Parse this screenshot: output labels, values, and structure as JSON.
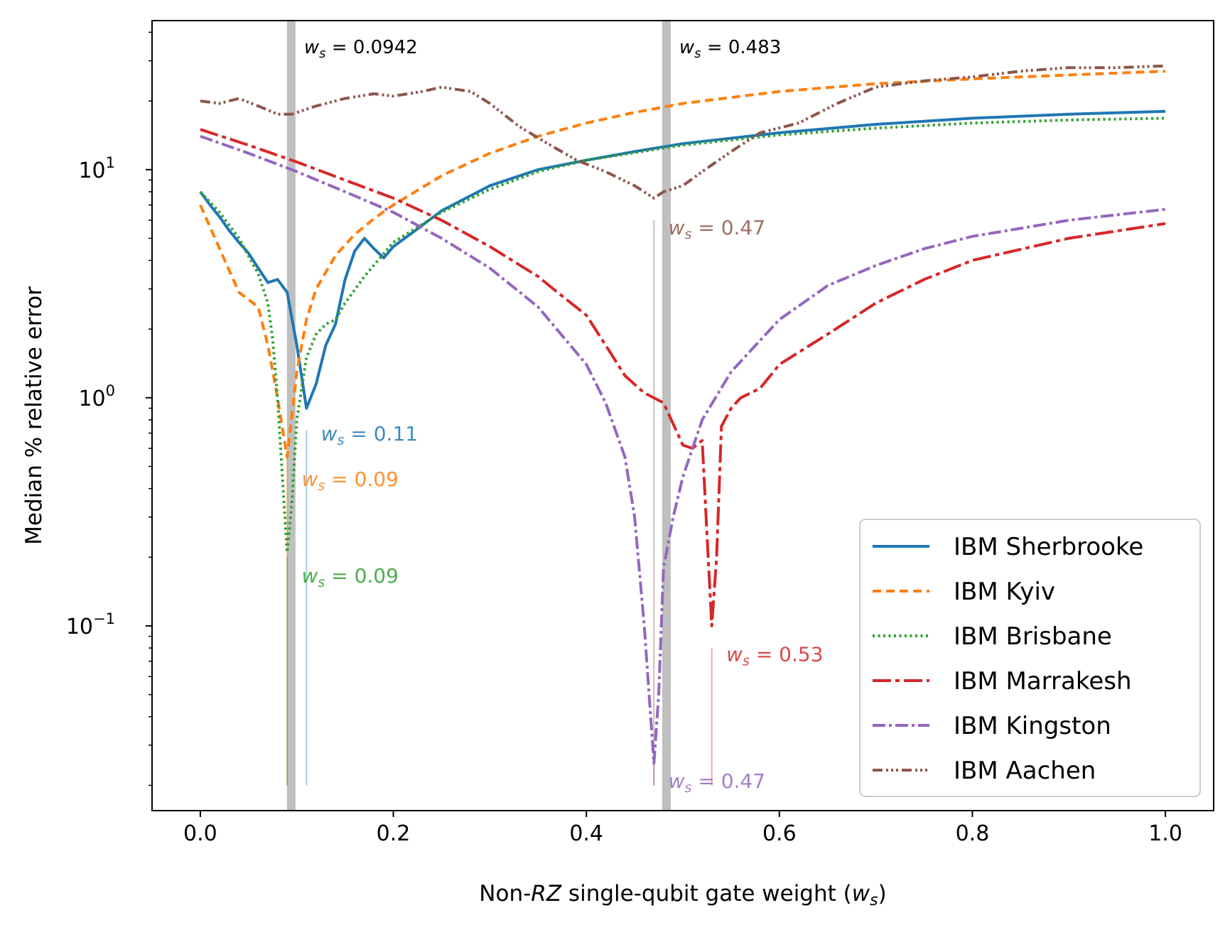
{
  "chart_data": {
    "type": "line",
    "xlabel_prefix": "Non-",
    "xlabel_italic": "RZ",
    "xlabel_middle": " single-qubit gate weight (",
    "xlabel_var": "w",
    "xlabel_sub": "s",
    "xlabel_suffix": ")",
    "ylabel": "Median % relative error",
    "xlim": [
      -0.05,
      1.05
    ],
    "ylim": [
      0.0155,
      45
    ],
    "yscale": "log",
    "xticks": [
      {
        "value": 0.0,
        "label": "0.0"
      },
      {
        "value": 0.2,
        "label": "0.2"
      },
      {
        "value": 0.4,
        "label": "0.4"
      },
      {
        "value": 0.6,
        "label": "0.6"
      },
      {
        "value": 0.8,
        "label": "0.8"
      },
      {
        "value": 1.0,
        "label": "1.0"
      }
    ],
    "yticks": [
      {
        "value": 0.1,
        "base": "10",
        "exp": "−1"
      },
      {
        "value": 1,
        "base": "10",
        "exp": "0"
      },
      {
        "value": 10,
        "base": "10",
        "exp": "1"
      }
    ],
    "legend_position": "lower-right",
    "vertical_lines": [
      {
        "x": 0.0942,
        "label_prefix": "w",
        "label_sub": "s",
        "label_value": " = 0.0942",
        "color": "#bfbfbf"
      },
      {
        "x": 0.483,
        "label_prefix": "w",
        "label_sub": "s",
        "label_value": " = 0.483",
        "color": "#bfbfbf"
      }
    ],
    "annotations": [
      {
        "series": "IBM Sherbrooke",
        "x": 0.11,
        "y_top": 0.72,
        "y_bottom": 0.02,
        "text_x": 0.125,
        "text_y": 0.65,
        "label_prefix": "w",
        "label_sub": "s",
        "label_value": " = 0.11",
        "color": "#1f77b4"
      },
      {
        "series": "IBM Kyiv",
        "x": 0.09,
        "y_top": 0.55,
        "y_bottom": 0.02,
        "text_x": 0.105,
        "text_y": 0.41,
        "label_prefix": "w",
        "label_sub": "s",
        "label_value": " = 0.09",
        "color": "#ff7f0e"
      },
      {
        "series": "IBM Brisbane",
        "x": 0.09,
        "y_top": 0.2,
        "y_bottom": 0.02,
        "text_x": 0.105,
        "text_y": 0.155,
        "label_prefix": "w",
        "label_sub": "s",
        "label_value": " = 0.09",
        "color": "#2ca02c"
      },
      {
        "series": "IBM Marrakesh",
        "x": 0.53,
        "y_top": 0.08,
        "y_bottom": 0.02,
        "text_x": 0.545,
        "text_y": 0.07,
        "label_prefix": "w",
        "label_sub": "s",
        "label_value": " = 0.53",
        "color": "#d62728"
      },
      {
        "series": "IBM Kingston",
        "x": 0.47,
        "y_top": 0.03,
        "y_bottom": 0.02,
        "text_x": 0.485,
        "text_y": 0.0195,
        "label_prefix": "w",
        "label_sub": "s",
        "label_value": " = 0.47",
        "color": "#9467bd"
      },
      {
        "series": "IBM Aachen",
        "x": 0.47,
        "y_top": 6.0,
        "y_bottom": 0.02,
        "text_x": 0.485,
        "text_y": 5.2,
        "label_prefix": "w",
        "label_sub": "s",
        "label_value": " = 0.47",
        "color": "#8c564b"
      }
    ],
    "series": [
      {
        "name": "IBM Sherbrooke",
        "color": "#1f77b4",
        "dash": "",
        "x": [
          0.0,
          0.01,
          0.02,
          0.03,
          0.04,
          0.05,
          0.06,
          0.07,
          0.08,
          0.09,
          0.1,
          0.11,
          0.12,
          0.13,
          0.14,
          0.15,
          0.16,
          0.17,
          0.18,
          0.19,
          0.2,
          0.22,
          0.25,
          0.3,
          0.35,
          0.4,
          0.45,
          0.5,
          0.6,
          0.7,
          0.8,
          0.9,
          1.0
        ],
        "y": [
          8.0,
          7.0,
          6.2,
          5.4,
          4.8,
          4.3,
          3.7,
          3.2,
          3.3,
          2.9,
          1.7,
          0.9,
          1.15,
          1.7,
          2.1,
          3.3,
          4.4,
          5.0,
          4.5,
          4.1,
          4.6,
          5.3,
          6.6,
          8.5,
          10.0,
          11.0,
          12.0,
          13.0,
          14.5,
          15.8,
          16.8,
          17.5,
          18.0
        ]
      },
      {
        "name": "IBM Kyiv",
        "color": "#ff7f0e",
        "dash": "12,7",
        "x": [
          0.0,
          0.02,
          0.04,
          0.06,
          0.07,
          0.08,
          0.09,
          0.1,
          0.11,
          0.12,
          0.14,
          0.16,
          0.18,
          0.2,
          0.25,
          0.3,
          0.35,
          0.4,
          0.45,
          0.5,
          0.6,
          0.7,
          0.8,
          0.9,
          1.0
        ],
        "y": [
          7.0,
          4.5,
          2.9,
          2.5,
          1.7,
          1.0,
          0.55,
          1.3,
          2.2,
          3.0,
          4.2,
          5.2,
          6.1,
          7.0,
          9.4,
          11.8,
          14.0,
          16.0,
          17.8,
          19.5,
          22.0,
          23.8,
          25.0,
          26.0,
          27.0
        ]
      },
      {
        "name": "IBM Brisbane",
        "color": "#2ca02c",
        "dash": "3,4.5",
        "x": [
          0.0,
          0.02,
          0.04,
          0.06,
          0.07,
          0.075,
          0.08,
          0.085,
          0.09,
          0.095,
          0.1,
          0.11,
          0.12,
          0.13,
          0.14,
          0.15,
          0.17,
          0.2,
          0.25,
          0.3,
          0.35,
          0.4,
          0.5,
          0.6,
          0.7,
          0.8,
          0.9,
          1.0
        ],
        "y": [
          8.0,
          6.5,
          5.0,
          3.5,
          2.6,
          1.8,
          1.0,
          0.45,
          0.21,
          0.35,
          0.8,
          1.5,
          1.9,
          2.1,
          2.2,
          2.6,
          3.4,
          4.8,
          6.5,
          8.2,
          9.8,
          11.0,
          12.8,
          14.2,
          15.2,
          16.0,
          16.5,
          16.8
        ]
      },
      {
        "name": "IBM Marrakesh",
        "color": "#d62728",
        "dash": "26,6,6,6",
        "x": [
          0.0,
          0.05,
          0.1,
          0.15,
          0.2,
          0.25,
          0.3,
          0.35,
          0.37,
          0.4,
          0.42,
          0.44,
          0.46,
          0.48,
          0.5,
          0.51,
          0.52,
          0.525,
          0.53,
          0.535,
          0.54,
          0.55,
          0.56,
          0.58,
          0.6,
          0.65,
          0.7,
          0.75,
          0.8,
          0.9,
          1.0
        ],
        "y": [
          15.0,
          12.8,
          10.8,
          9.0,
          7.5,
          6.0,
          4.6,
          3.4,
          2.9,
          2.3,
          1.7,
          1.25,
          1.05,
          0.95,
          0.62,
          0.6,
          0.65,
          0.25,
          0.1,
          0.2,
          0.75,
          0.9,
          1.0,
          1.1,
          1.4,
          1.9,
          2.6,
          3.3,
          4.0,
          5.0,
          5.8
        ]
      },
      {
        "name": "IBM Kingston",
        "color": "#9467bd",
        "dash": "18,5,4,5",
        "x": [
          0.0,
          0.05,
          0.1,
          0.15,
          0.2,
          0.25,
          0.3,
          0.35,
          0.4,
          0.42,
          0.44,
          0.45,
          0.46,
          0.465,
          0.47,
          0.475,
          0.48,
          0.49,
          0.5,
          0.52,
          0.55,
          0.6,
          0.65,
          0.7,
          0.75,
          0.8,
          0.9,
          1.0
        ],
        "y": [
          14.0,
          11.8,
          9.8,
          8.0,
          6.5,
          5.0,
          3.7,
          2.5,
          1.4,
          0.95,
          0.55,
          0.3,
          0.1,
          0.05,
          0.025,
          0.05,
          0.18,
          0.3,
          0.45,
          0.8,
          1.3,
          2.2,
          3.1,
          3.8,
          4.5,
          5.1,
          6.0,
          6.7
        ]
      },
      {
        "name": "IBM Aachen",
        "color": "#8c564b",
        "dash": "14,5,3,4,3,4,3,5",
        "x": [
          0.0,
          0.02,
          0.04,
          0.06,
          0.08,
          0.095,
          0.12,
          0.15,
          0.18,
          0.2,
          0.23,
          0.25,
          0.28,
          0.3,
          0.33,
          0.36,
          0.39,
          0.42,
          0.45,
          0.47,
          0.48,
          0.5,
          0.52,
          0.55,
          0.58,
          0.62,
          0.66,
          0.7,
          0.75,
          0.8,
          0.85,
          0.9,
          0.95,
          1.0
        ],
        "y": [
          20.0,
          19.5,
          20.5,
          19.0,
          17.5,
          17.5,
          19.0,
          20.5,
          21.5,
          21.0,
          22.0,
          23.0,
          22.0,
          19.5,
          15.5,
          13.0,
          11.0,
          9.8,
          8.5,
          7.5,
          8.0,
          8.5,
          9.8,
          12.0,
          14.5,
          16.0,
          19.5,
          23.0,
          24.5,
          25.5,
          27.0,
          28.0,
          28.0,
          28.5
        ]
      }
    ]
  }
}
